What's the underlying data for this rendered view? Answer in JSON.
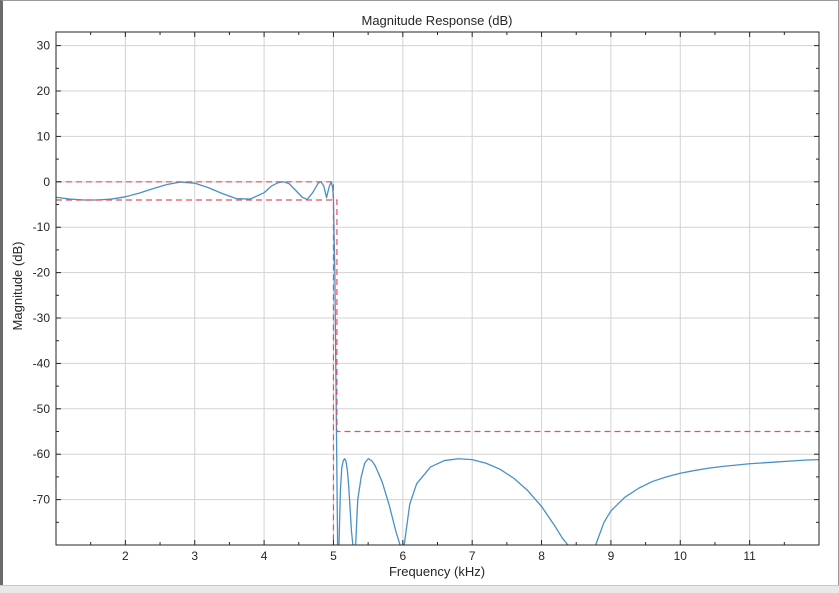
{
  "chart_data": {
    "type": "line",
    "title": "Magnitude Response (dB)",
    "xlabel": "Frequency (kHz)",
    "ylabel": "Magnitude (dB)",
    "xlim": [
      1,
      12
    ],
    "ylim": [
      -80,
      33
    ],
    "x_ticks": [
      2,
      3,
      4,
      5,
      6,
      7,
      8,
      9,
      10,
      11
    ],
    "y_ticks": [
      30,
      20,
      10,
      0,
      -10,
      -20,
      -30,
      -40,
      -50,
      -60,
      -70
    ],
    "grid": true,
    "colors": {
      "response": "#4a90c8",
      "mask": "#e8505b",
      "grid": "#d3d3d3"
    },
    "series": [
      {
        "style": "solid",
        "x": [
          1.0,
          1.2,
          1.4,
          1.6,
          1.8,
          2.0,
          2.2,
          2.4,
          2.6,
          2.8,
          3.0,
          3.2,
          3.4,
          3.6,
          3.8,
          4.0,
          4.1,
          4.2,
          4.28,
          4.36,
          4.45,
          4.55,
          4.62,
          4.7,
          4.78,
          4.82,
          4.86,
          4.9,
          4.94,
          4.97,
          4.99,
          5.0,
          5.02,
          5.04,
          5.06
        ],
        "y": [
          -3.4,
          -3.8,
          -4.0,
          -4.0,
          -3.8,
          -3.3,
          -2.5,
          -1.5,
          -0.6,
          -0.05,
          -0.3,
          -1.3,
          -2.6,
          -3.7,
          -3.8,
          -2.4,
          -1.0,
          -0.2,
          0.0,
          -0.4,
          -1.8,
          -3.4,
          -3.9,
          -2.4,
          -0.3,
          0.0,
          -0.9,
          -3.5,
          -1.0,
          0.0,
          -1.5,
          -4.0,
          -20.0,
          -50.0,
          -80.0
        ]
      },
      {
        "style": "solid",
        "x": [
          5.08,
          5.1,
          5.12,
          5.14,
          5.16,
          5.18,
          5.2,
          5.22,
          5.24,
          5.26,
          5.28
        ],
        "y": [
          -80.0,
          -68.0,
          -63.0,
          -61.5,
          -61.0,
          -61.5,
          -63.5,
          -67.0,
          -72.0,
          -77.0,
          -80.0
        ]
      },
      {
        "style": "solid",
        "x": [
          5.32,
          5.35,
          5.4,
          5.45,
          5.5,
          5.55,
          5.6,
          5.7,
          5.8,
          5.9,
          5.96
        ],
        "y": [
          -80.0,
          -70.0,
          -65.0,
          -62.0,
          -61.0,
          -61.4,
          -62.5,
          -66.0,
          -71.0,
          -77.0,
          -80.0
        ]
      },
      {
        "style": "solid",
        "x": [
          6.02,
          6.1,
          6.2,
          6.4,
          6.6,
          6.8,
          7.0,
          7.2,
          7.4,
          7.6,
          7.8,
          8.0,
          8.2,
          8.3,
          8.38
        ],
        "y": [
          -80.0,
          -71.0,
          -66.5,
          -62.8,
          -61.4,
          -61.0,
          -61.2,
          -62.0,
          -63.3,
          -65.3,
          -68.0,
          -71.5,
          -76.0,
          -78.5,
          -80.0
        ]
      },
      {
        "style": "solid",
        "x": [
          8.78,
          8.9,
          9.0,
          9.2,
          9.4,
          9.6,
          9.8,
          10.0,
          10.2,
          10.4,
          10.6,
          10.8,
          11.0,
          11.2,
          11.4,
          11.6,
          11.8,
          12.0
        ],
        "y": [
          -80.0,
          -75.0,
          -72.5,
          -69.5,
          -67.5,
          -66.0,
          -65.0,
          -64.2,
          -63.6,
          -63.1,
          -62.7,
          -62.4,
          -62.1,
          -61.9,
          -61.7,
          -61.5,
          -61.3,
          -61.2
        ]
      },
      {
        "style": "dashed",
        "x": [
          1.0,
          5.0,
          5.0
        ],
        "y": [
          0.0,
          0.0,
          -80.0
        ]
      },
      {
        "style": "dashed",
        "x": [
          1.0,
          5.05,
          5.05,
          12.0
        ],
        "y": [
          -4.0,
          -4.0,
          -55.0,
          -55.0
        ]
      }
    ]
  }
}
